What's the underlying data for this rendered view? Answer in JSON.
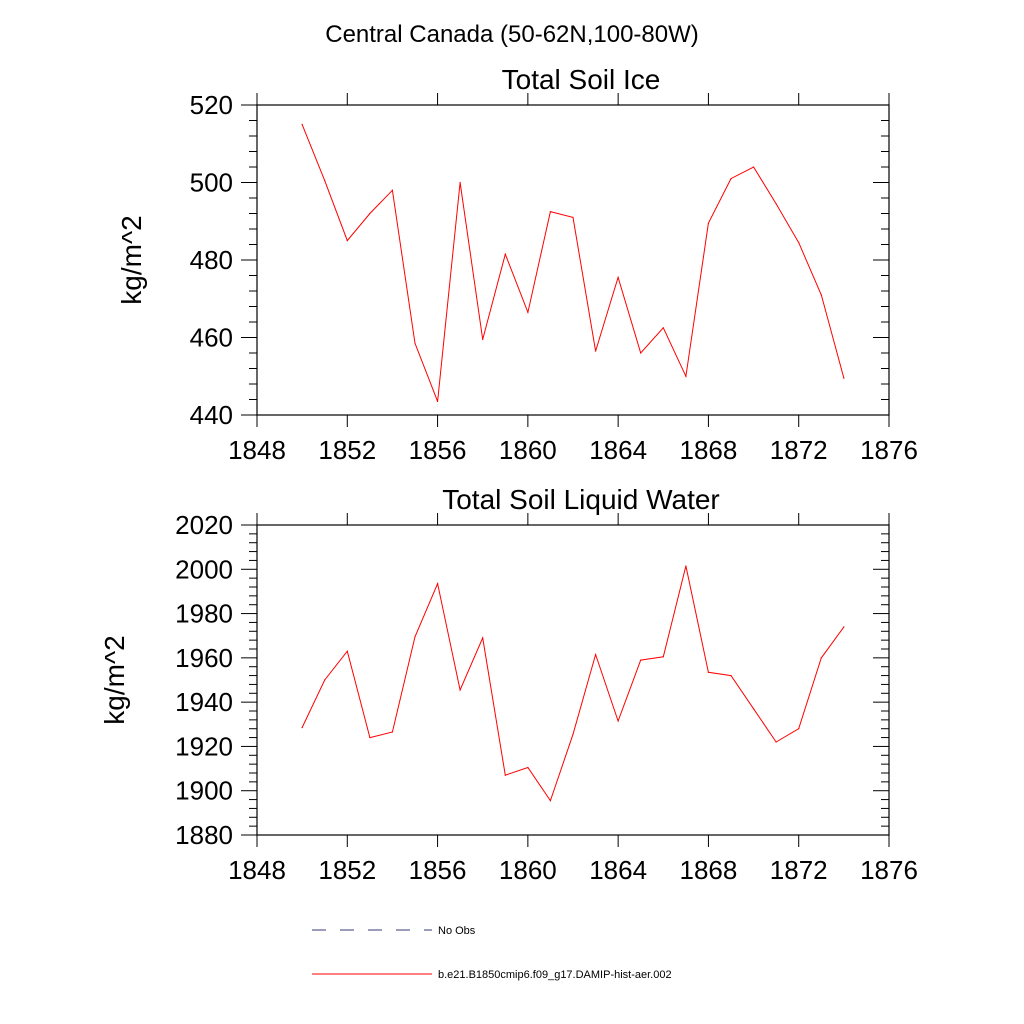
{
  "page": {
    "suptitle": "Central Canada (50-62N,100-80W)"
  },
  "chart_data": [
    {
      "type": "line",
      "title": "Total Soil Ice",
      "ylabel": "kg/m^2",
      "xlabel": "",
      "xlim": [
        1848,
        1876
      ],
      "ylim": [
        440,
        520
      ],
      "xticks": [
        1848,
        1852,
        1856,
        1860,
        1864,
        1868,
        1872,
        1876
      ],
      "yticks": [
        440,
        460,
        480,
        500,
        520
      ],
      "series": [
        {
          "name": "b.e21.B1850cmip6.f09_g17.DAMIP-hist-aer.002",
          "color": "#ff0000",
          "x": [
            1850,
            1851,
            1852,
            1853,
            1854,
            1855,
            1856,
            1857,
            1858,
            1859,
            1860,
            1861,
            1862,
            1863,
            1864,
            1865,
            1866,
            1867,
            1868,
            1869,
            1870,
            1871,
            1872,
            1873,
            1874
          ],
          "y": [
            515,
            500.5,
            485,
            492,
            498,
            458.5,
            443.5,
            500,
            459.5,
            481.5,
            466.5,
            492.5,
            491,
            456.5,
            475.5,
            456,
            462.5,
            450,
            489.5,
            501,
            504,
            494.5,
            484.5,
            471,
            449.5
          ]
        }
      ]
    },
    {
      "type": "line",
      "title": "Total Soil Liquid Water",
      "ylabel": "kg/m^2",
      "xlabel": "",
      "xlim": [
        1848,
        1876
      ],
      "ylim": [
        1880,
        2020
      ],
      "xticks": [
        1848,
        1852,
        1856,
        1860,
        1864,
        1868,
        1872,
        1876
      ],
      "yticks": [
        1880,
        1900,
        1920,
        1940,
        1960,
        1980,
        2000,
        2020
      ],
      "series": [
        {
          "name": "b.e21.B1850cmip6.f09_g17.DAMIP-hist-aer.002",
          "color": "#ff0000",
          "x": [
            1850,
            1851,
            1852,
            1853,
            1854,
            1855,
            1856,
            1857,
            1858,
            1859,
            1860,
            1861,
            1862,
            1863,
            1864,
            1865,
            1866,
            1867,
            1868,
            1869,
            1870,
            1871,
            1872,
            1873,
            1874
          ],
          "y": [
            1928.5,
            1950,
            1963,
            1924,
            1926.5,
            1969.5,
            1993.5,
            1945.5,
            1969,
            1907,
            1910.5,
            1895.5,
            1925.5,
            1961.5,
            1931.5,
            1959,
            1960.5,
            2001.5,
            1953.5,
            1952,
            1937,
            1922,
            1928,
            1960,
            1974
          ]
        }
      ]
    }
  ],
  "legend": {
    "items": [
      {
        "label": "No Obs",
        "color": "#3a3a7a",
        "style": "dashed"
      },
      {
        "label": "b.e21.B1850cmip6.f09_g17.DAMIP-hist-aer.002",
        "color": "#ff0000",
        "style": "solid"
      }
    ]
  }
}
